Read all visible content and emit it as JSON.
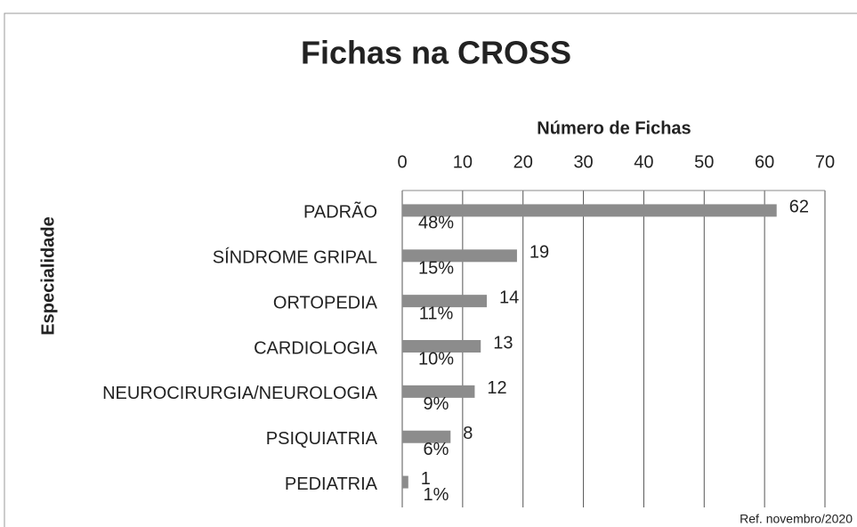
{
  "chart_data": {
    "type": "bar",
    "orientation": "horizontal",
    "title": "Fichas na CROSS",
    "x_axis_label": "Número de Fichas",
    "y_axis_label": "Especialidade",
    "categories": [
      "PADRÃO",
      "SÍNDROME GRIPAL",
      "ORTOPEDIA",
      "CARDIOLOGIA",
      "NEUROCIRURGIA/NEUROLOGIA",
      "PSIQUIATRIA",
      "PEDIATRIA"
    ],
    "values": [
      62,
      19,
      14,
      13,
      12,
      8,
      1
    ],
    "percent_values": [
      48,
      15,
      11,
      10,
      9,
      6,
      1
    ],
    "percent_labels": [
      "48%",
      "15%",
      "11%",
      "10%",
      "9%",
      "6%",
      "1%"
    ],
    "color": "#8c8c8c",
    "xlim": [
      0,
      70
    ],
    "xticks": [
      0,
      10,
      20,
      30,
      40,
      50,
      60,
      70
    ],
    "grid": true,
    "footnote": "Ref. novembro/2020"
  }
}
